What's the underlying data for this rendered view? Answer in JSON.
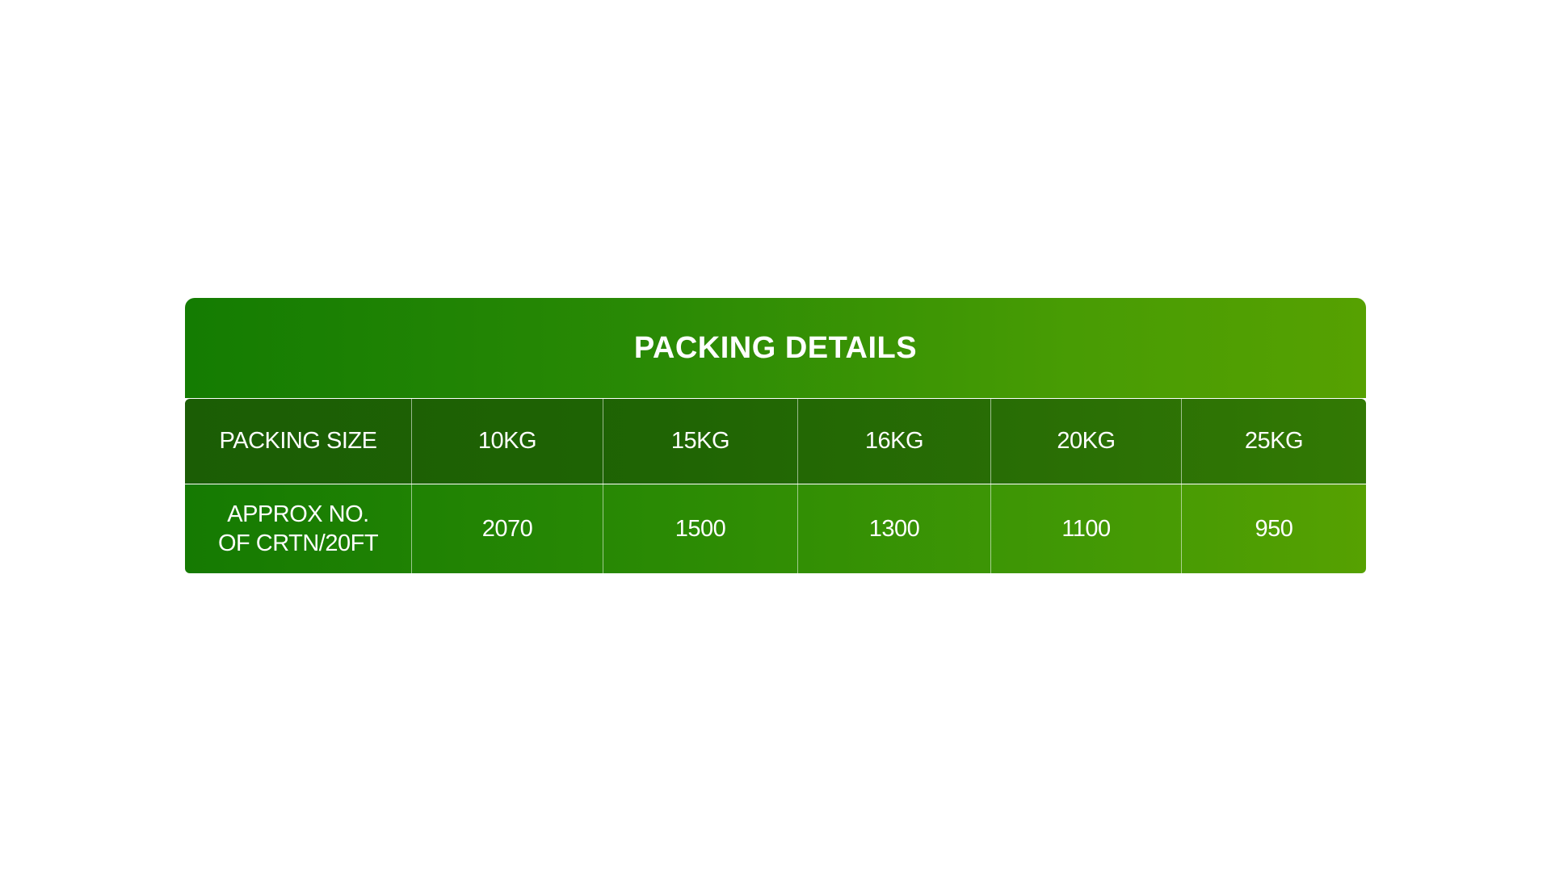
{
  "table": {
    "title": "PACKING DETAILS",
    "header": {
      "label": "PACKING SIZE",
      "values": [
        "10KG",
        "15KG",
        "16KG",
        "20KG",
        "25KG"
      ]
    },
    "row": {
      "label": "APPROX NO. OF CRTN/20FT",
      "values": [
        "2070",
        "1500",
        "1300",
        "1100",
        "950"
      ]
    },
    "colors": {
      "title_start": "#147c02",
      "title_end": "#56a101",
      "header_row": "#1f6404",
      "text": "#ffffff"
    }
  }
}
